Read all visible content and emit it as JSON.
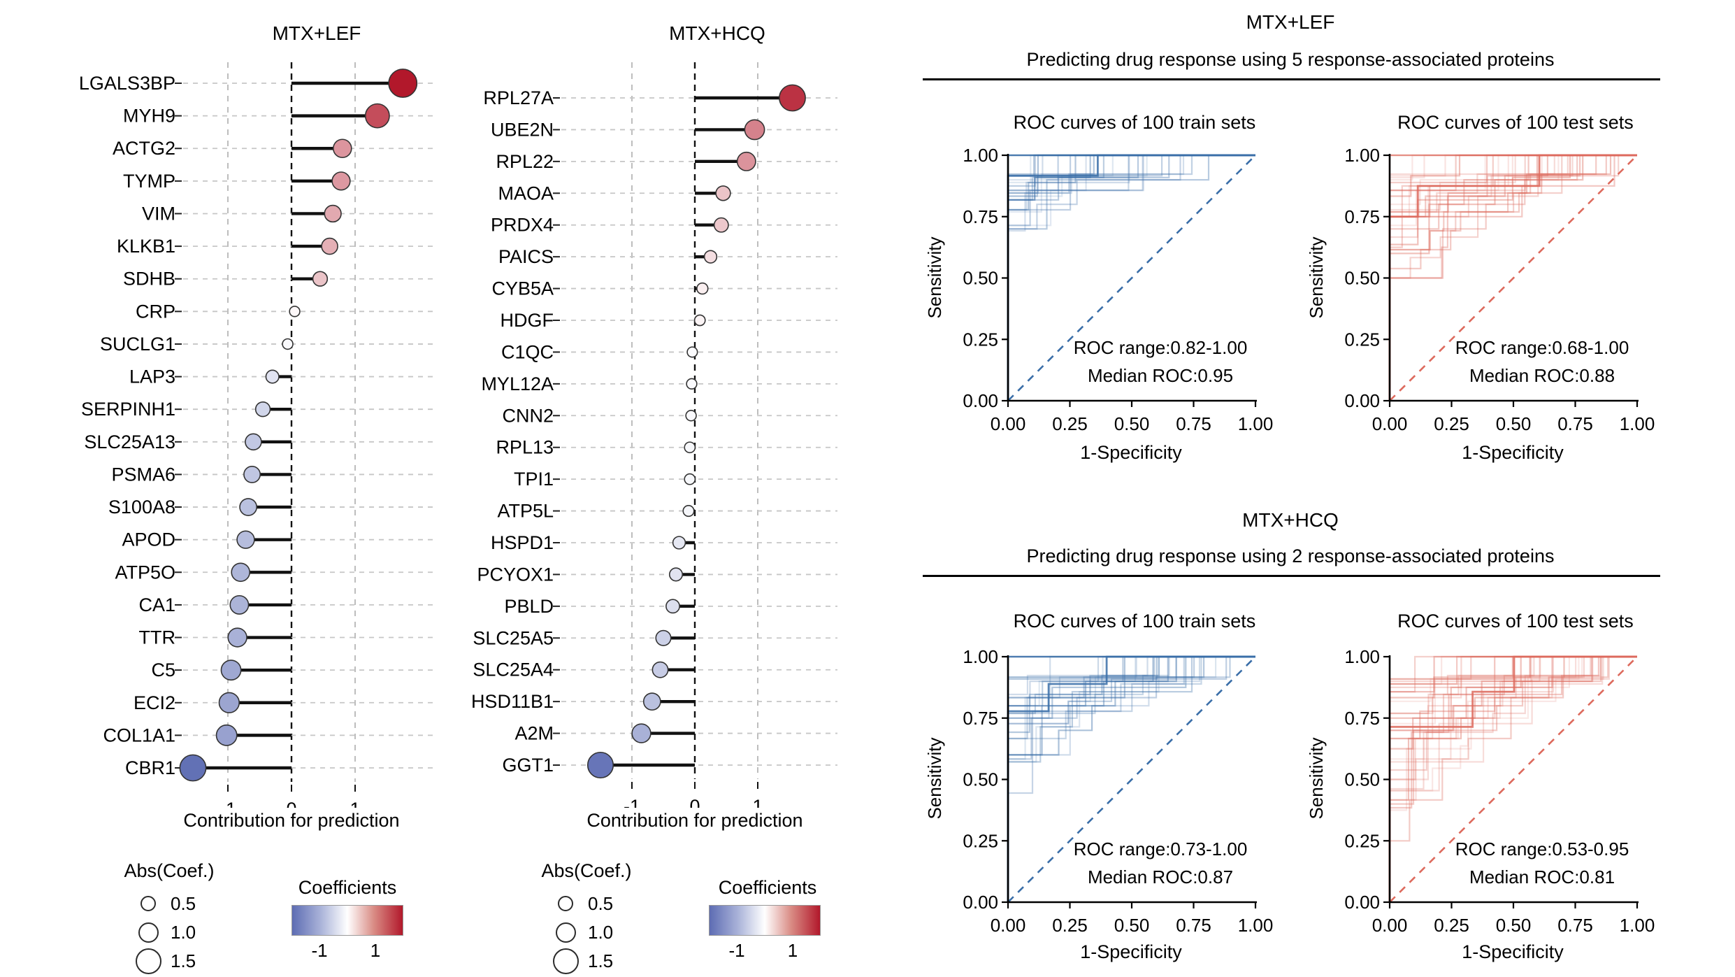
{
  "figure": {
    "background": "#ffffff"
  },
  "lollipop_legend": {
    "size_title": "Abs(Coef.)",
    "sizes": [
      "0.5",
      "1.0",
      "1.5"
    ],
    "size_values": [
      0.5,
      1.0,
      1.5
    ],
    "color_title": "Coefficients",
    "color_min_label": "-1",
    "color_max_label": "1",
    "neg_color": "#5d6cb3",
    "pos_color": "#b2182b"
  },
  "roc_groups": [
    {
      "title": "MTX+LEF",
      "subtitle": "Predicting drug response using 5 response-associated proteins"
    },
    {
      "title": "MTX+HCQ",
      "subtitle": "Predicting drug response using 2 response-associated proteins"
    }
  ],
  "chart_data": [
    {
      "id": "lollipop_mtx_lef",
      "type": "scatter",
      "variant": "lollipop",
      "title": "MTX+LEF",
      "xlabel": "Contribution for prediction",
      "xlim": [
        -1.75,
        2.3
      ],
      "xticks": [
        {
          "value": -1,
          "label": "-1"
        },
        {
          "value": 0,
          "label": "0"
        },
        {
          "value": 1,
          "label": "1"
        }
      ],
      "size_encoding": "Abs(Coef.)",
      "color_encoding": "Coefficients",
      "points": [
        {
          "label": "LGALS3BP",
          "value": 1.75
        },
        {
          "label": "MYH9",
          "value": 1.35
        },
        {
          "label": "ACTG2",
          "value": 0.8
        },
        {
          "label": "TYMP",
          "value": 0.78
        },
        {
          "label": "VIM",
          "value": 0.65
        },
        {
          "label": "KLKB1",
          "value": 0.6
        },
        {
          "label": "SDHB",
          "value": 0.45
        },
        {
          "label": "CRP",
          "value": 0.05
        },
        {
          "label": "SUCLG1",
          "value": -0.06
        },
        {
          "label": "LAP3",
          "value": -0.3
        },
        {
          "label": "SERPINH1",
          "value": -0.45
        },
        {
          "label": "SLC25A13",
          "value": -0.6
        },
        {
          "label": "PSMA6",
          "value": -0.62
        },
        {
          "label": "S100A8",
          "value": -0.68
        },
        {
          "label": "APOD",
          "value": -0.72
        },
        {
          "label": "ATP5O",
          "value": -0.8
        },
        {
          "label": "CA1",
          "value": -0.82
        },
        {
          "label": "TTR",
          "value": -0.85
        },
        {
          "label": "C5",
          "value": -0.95
        },
        {
          "label": "ECI2",
          "value": -0.98
        },
        {
          "label": "COL1A1",
          "value": -1.02
        },
        {
          "label": "CBR1",
          "value": -1.55
        }
      ]
    },
    {
      "id": "lollipop_mtx_hcq",
      "type": "scatter",
      "variant": "lollipop",
      "title": "MTX+HCQ",
      "xlabel": "Contribution for prediction",
      "xlim": [
        -1.75,
        2.3
      ],
      "xticks": [
        {
          "value": -1,
          "label": "-1"
        },
        {
          "value": 0,
          "label": "0"
        },
        {
          "value": 1,
          "label": "1"
        }
      ],
      "size_encoding": "Abs(Coef.)",
      "color_encoding": "Coefficients",
      "points": [
        {
          "label": "RPL27A",
          "value": 1.55
        },
        {
          "label": "UBE2N",
          "value": 0.95
        },
        {
          "label": "RPL22",
          "value": 0.82
        },
        {
          "label": "MAOA",
          "value": 0.45
        },
        {
          "label": "PRDX4",
          "value": 0.42
        },
        {
          "label": "PAICS",
          "value": 0.25
        },
        {
          "label": "CYB5A",
          "value": 0.12
        },
        {
          "label": "HDGF",
          "value": 0.08
        },
        {
          "label": "C1QC",
          "value": -0.04
        },
        {
          "label": "MYL12A",
          "value": -0.05
        },
        {
          "label": "CNN2",
          "value": -0.06
        },
        {
          "label": "RPL13",
          "value": -0.08
        },
        {
          "label": "TPI1",
          "value": -0.08
        },
        {
          "label": "ATP5L",
          "value": -0.1
        },
        {
          "label": "HSPD1",
          "value": -0.25
        },
        {
          "label": "PCYOX1",
          "value": -0.3
        },
        {
          "label": "PBLD",
          "value": -0.35
        },
        {
          "label": "SLC25A5",
          "value": -0.5
        },
        {
          "label": "SLC25A4",
          "value": -0.55
        },
        {
          "label": "HSD11B1",
          "value": -0.68
        },
        {
          "label": "A2M",
          "value": -0.85
        },
        {
          "label": "GGT1",
          "value": -1.5
        }
      ]
    },
    {
      "id": "roc_lef_train",
      "type": "line",
      "variant": "roc",
      "title": "ROC curves of 100 train sets",
      "xlabel": "1-Specificity",
      "ylabel": "Sensitivity",
      "xticks": [
        "0.00",
        "0.25",
        "0.50",
        "0.75",
        "1.00"
      ],
      "yticks": [
        "0.00",
        "0.25",
        "0.50",
        "0.75",
        "1.00"
      ],
      "tick_values": [
        0,
        0.25,
        0.5,
        0.75,
        1
      ],
      "annotation_line1": "ROC range:0.82-1.00",
      "annotation_line2": "Median ROC:0.95",
      "roc_range": [
        0.82,
        1.0
      ],
      "median_roc": 0.95,
      "n_curves": 100,
      "color": "#3a6ea8",
      "seed": 101
    },
    {
      "id": "roc_lef_test",
      "type": "line",
      "variant": "roc",
      "title": "ROC curves of 100 test sets",
      "xlabel": "1-Specificity",
      "ylabel": "Sensitivity",
      "xticks": [
        "0.00",
        "0.25",
        "0.50",
        "0.75",
        "1.00"
      ],
      "yticks": [
        "0.00",
        "0.25",
        "0.50",
        "0.75",
        "1.00"
      ],
      "tick_values": [
        0,
        0.25,
        0.5,
        0.75,
        1
      ],
      "annotation_line1": "ROC range:0.68-1.00",
      "annotation_line2": "Median ROC:0.88",
      "roc_range": [
        0.68,
        1.0
      ],
      "median_roc": 0.88,
      "n_curves": 100,
      "color": "#dd6a5d",
      "seed": 202
    },
    {
      "id": "roc_hcq_train",
      "type": "line",
      "variant": "roc",
      "title": "ROC curves of 100 train sets",
      "xlabel": "1-Specificity",
      "ylabel": "Sensitivity",
      "xticks": [
        "0.00",
        "0.25",
        "0.50",
        "0.75",
        "1.00"
      ],
      "yticks": [
        "0.00",
        "0.25",
        "0.50",
        "0.75",
        "1.00"
      ],
      "tick_values": [
        0,
        0.25,
        0.5,
        0.75,
        1
      ],
      "annotation_line1": "ROC range:0.73-1.00",
      "annotation_line2": "Median ROC:0.87",
      "roc_range": [
        0.73,
        1.0
      ],
      "median_roc": 0.87,
      "n_curves": 100,
      "color": "#3a6ea8",
      "seed": 303
    },
    {
      "id": "roc_hcq_test",
      "type": "line",
      "variant": "roc",
      "title": "ROC curves of 100 test sets",
      "xlabel": "1-Specificity",
      "ylabel": "Sensitivity",
      "xticks": [
        "0.00",
        "0.25",
        "0.50",
        "0.75",
        "1.00"
      ],
      "yticks": [
        "0.00",
        "0.25",
        "0.50",
        "0.75",
        "1.00"
      ],
      "tick_values": [
        0,
        0.25,
        0.5,
        0.75,
        1
      ],
      "annotation_line1": "ROC range:0.53-0.95",
      "annotation_line2": "Median ROC:0.81",
      "roc_range": [
        0.53,
        0.95
      ],
      "median_roc": 0.81,
      "n_curves": 100,
      "color": "#dd6a5d",
      "seed": 404
    }
  ]
}
